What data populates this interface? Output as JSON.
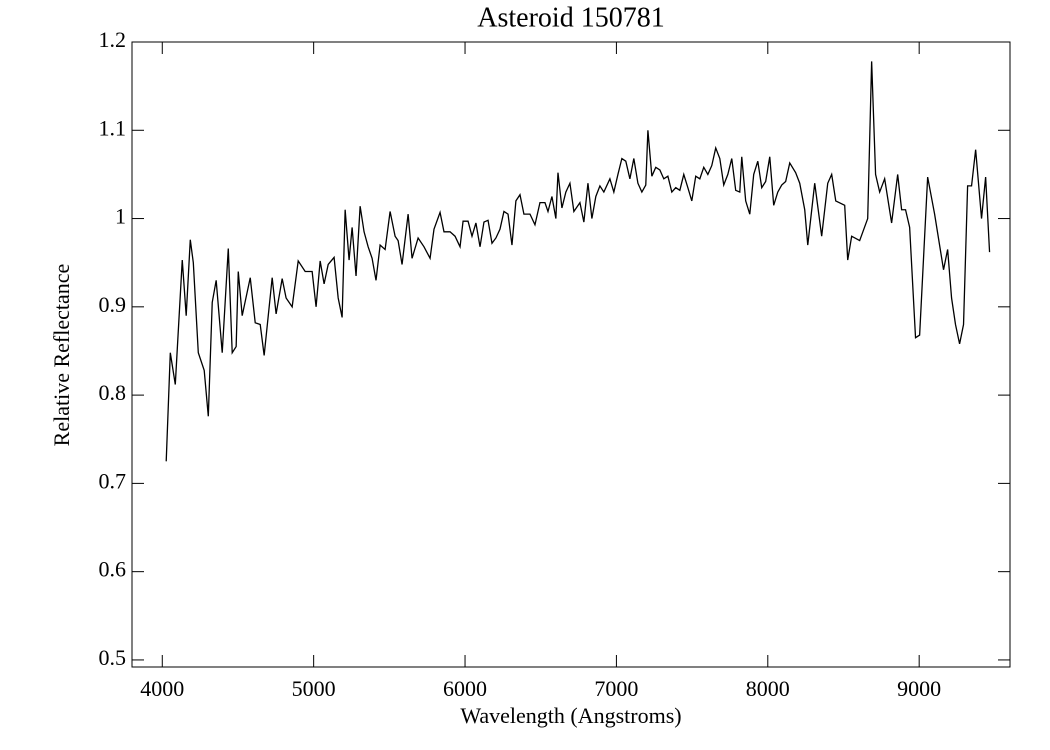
{
  "chart_data": {
    "type": "line",
    "title": "Asteroid 150781",
    "x_label": "Wavelength (Angstroms)",
    "y_label": "Relative Reflectance",
    "xlim": [
      3800,
      9600
    ],
    "ylim": [
      0.492,
      1.2
    ],
    "xticks": [
      4000,
      5000,
      6000,
      7000,
      8000,
      9000
    ],
    "yticks": [
      0.5,
      0.6,
      0.7,
      0.8,
      0.9,
      1.0,
      1.1,
      1.2
    ],
    "series": [
      {
        "color": "#000000",
        "x": [
          4026,
          4053,
          4086,
          4132,
          4158,
          4185,
          4205,
          4238,
          4277,
          4304,
          4330,
          4356,
          4396,
          4436,
          4462,
          4488,
          4502,
          4528,
          4581,
          4614,
          4647,
          4673,
          4726,
          4752,
          4792,
          4818,
          4858,
          4898,
          4944,
          4990,
          5016,
          5043,
          5069,
          5096,
          5135,
          5162,
          5188,
          5208,
          5234,
          5254,
          5280,
          5307,
          5333,
          5360,
          5386,
          5412,
          5439,
          5472,
          5505,
          5538,
          5558,
          5584,
          5624,
          5650,
          5690,
          5729,
          5769,
          5795,
          5835,
          5861,
          5901,
          5934,
          5967,
          5987,
          6020,
          6046,
          6072,
          6099,
          6125,
          6152,
          6178,
          6204,
          6231,
          6257,
          6284,
          6310,
          6336,
          6363,
          6389,
          6429,
          6462,
          6495,
          6528,
          6548,
          6574,
          6600,
          6614,
          6640,
          6666,
          6693,
          6719,
          6759,
          6785,
          6812,
          6838,
          6864,
          6891,
          6917,
          6957,
          6983,
          7010,
          7036,
          7062,
          7089,
          7115,
          7142,
          7168,
          7194,
          7208,
          7234,
          7260,
          7287,
          7313,
          7340,
          7366,
          7392,
          7419,
          7445,
          7472,
          7498,
          7524,
          7551,
          7577,
          7604,
          7630,
          7656,
          7683,
          7709,
          7736,
          7762,
          7788,
          7815,
          7828,
          7854,
          7881,
          7907,
          7934,
          7960,
          7986,
          8013,
          8039,
          8066,
          8092,
          8118,
          8145,
          8184,
          8211,
          8244,
          8264,
          8310,
          8356,
          8396,
          8422,
          8449,
          8508,
          8528,
          8554,
          8607,
          8660,
          8686,
          8712,
          8739,
          8772,
          8818,
          8858,
          8884,
          8910,
          8937,
          8976,
          9003,
          9056,
          9102,
          9161,
          9188,
          9214,
          9240,
          9267,
          9293,
          9320,
          9346,
          9373,
          9412,
          9439,
          9465
        ],
        "values": [
          0.725,
          0.848,
          0.812,
          0.953,
          0.89,
          0.976,
          0.95,
          0.848,
          0.828,
          0.776,
          0.905,
          0.93,
          0.848,
          0.966,
          0.848,
          0.855,
          0.94,
          0.89,
          0.933,
          0.882,
          0.88,
          0.845,
          0.933,
          0.892,
          0.932,
          0.91,
          0.9,
          0.952,
          0.94,
          0.94,
          0.9,
          0.952,
          0.926,
          0.948,
          0.956,
          0.91,
          0.888,
          1.01,
          0.953,
          0.99,
          0.935,
          1.014,
          0.985,
          0.968,
          0.955,
          0.93,
          0.97,
          0.965,
          1.008,
          0.98,
          0.975,
          0.948,
          1.005,
          0.955,
          0.978,
          0.968,
          0.955,
          0.988,
          1.007,
          0.985,
          0.985,
          0.98,
          0.968,
          0.997,
          0.997,
          0.98,
          0.995,
          0.968,
          0.996,
          0.998,
          0.972,
          0.978,
          0.988,
          1.008,
          1.005,
          0.97,
          1.02,
          1.027,
          1.005,
          1.005,
          0.993,
          1.018,
          1.018,
          1.008,
          1.025,
          1.0,
          1.052,
          1.012,
          1.03,
          1.04,
          1.008,
          1.018,
          0.996,
          1.04,
          1.0,
          1.025,
          1.037,
          1.03,
          1.045,
          1.03,
          1.05,
          1.068,
          1.065,
          1.045,
          1.068,
          1.04,
          1.03,
          1.038,
          1.1,
          1.048,
          1.058,
          1.055,
          1.045,
          1.048,
          1.03,
          1.035,
          1.032,
          1.05,
          1.035,
          1.02,
          1.048,
          1.045,
          1.058,
          1.05,
          1.06,
          1.08,
          1.068,
          1.038,
          1.05,
          1.068,
          1.032,
          1.03,
          1.07,
          1.02,
          1.005,
          1.05,
          1.065,
          1.035,
          1.042,
          1.07,
          1.015,
          1.03,
          1.038,
          1.042,
          1.063,
          1.052,
          1.04,
          1.01,
          0.97,
          1.04,
          0.98,
          1.04,
          1.05,
          1.02,
          1.015,
          0.953,
          0.98,
          0.975,
          1.0,
          1.178,
          1.05,
          1.03,
          1.045,
          0.995,
          1.05,
          1.01,
          1.01,
          0.99,
          0.865,
          0.868,
          1.047,
          1.005,
          0.942,
          0.965,
          0.91,
          0.88,
          0.858,
          0.88,
          1.037,
          1.037,
          1.078,
          1.0,
          1.047,
          0.962
        ]
      }
    ]
  }
}
